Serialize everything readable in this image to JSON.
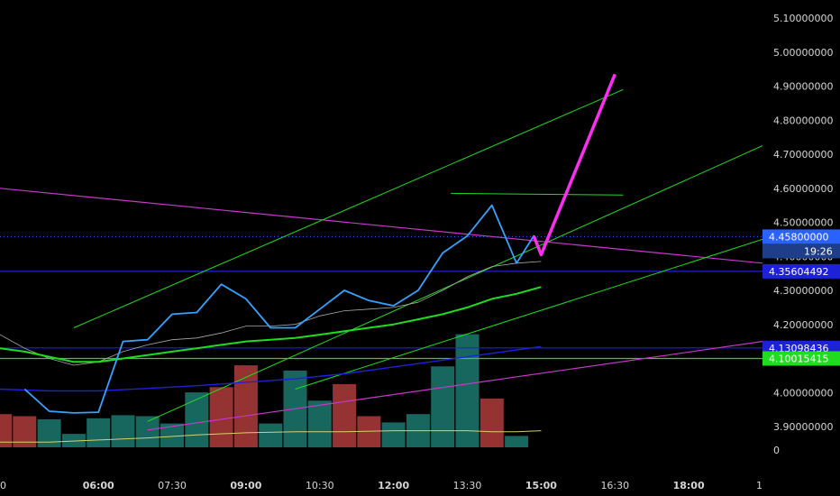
{
  "chart_data": {
    "type": "line",
    "title": "",
    "xlabel": "",
    "ylabel": "",
    "ylim": [
      3.83,
      5.13
    ],
    "grid": false,
    "legend": "none",
    "x_ticks": [
      {
        "label": "0",
        "minute": 240,
        "bold": false
      },
      {
        "label": "06:00",
        "minute": 360,
        "bold": true
      },
      {
        "label": "07:30",
        "minute": 450,
        "bold": false
      },
      {
        "label": "09:00",
        "minute": 540,
        "bold": true
      },
      {
        "label": "10:30",
        "minute": 630,
        "bold": false
      },
      {
        "label": "12:00",
        "minute": 720,
        "bold": true
      },
      {
        "label": "13:30",
        "minute": 810,
        "bold": false
      },
      {
        "label": "15:00",
        "minute": 900,
        "bold": true
      },
      {
        "label": "16:30",
        "minute": 990,
        "bold": false
      },
      {
        "label": "18:00",
        "minute": 1080,
        "bold": true
      },
      {
        "label": "1",
        "minute": 1170,
        "bold": false
      }
    ],
    "y_ticks": [
      "5.10000000",
      "5.00000000",
      "4.90000000",
      "4.80000000",
      "4.70000000",
      "4.60000000",
      "4.50000000",
      "4.40000000",
      "4.30000000",
      "4.20000000",
      "4.10000000",
      "4.00000000",
      "3.90000000"
    ],
    "y_tick_values": [
      5.1,
      5.0,
      4.9,
      4.8,
      4.7,
      4.6,
      4.5,
      4.4,
      4.3,
      4.2,
      4.1,
      4.0,
      3.9
    ],
    "price_tags": [
      {
        "label": "4.45800000",
        "value": 4.458,
        "color": "#2962ff"
      },
      {
        "label": "4.35604492",
        "value": 4.356,
        "color": "#1e22d6"
      },
      {
        "label": "4.13098436",
        "value": 4.131,
        "color": "#1e22d6"
      },
      {
        "label": "4.10015415",
        "value": 4.1,
        "color": "#1fdc1f"
      }
    ],
    "countdown": "19:26",
    "volume_zero_label": "0",
    "price_series": {
      "name": "",
      "color": "#33a3ff",
      "x": [
        270,
        300,
        330,
        360,
        390,
        420,
        450,
        480,
        510,
        540,
        570,
        600,
        630,
        660,
        690,
        720,
        750,
        780,
        810,
        840,
        870,
        891,
        900
      ],
      "y": [
        4.01,
        3.945,
        3.94,
        3.942,
        4.15,
        4.155,
        4.23,
        4.235,
        4.318,
        4.275,
        4.19,
        4.19,
        4.245,
        4.3,
        4.27,
        4.255,
        4.3,
        4.41,
        4.46,
        4.55,
        4.38,
        4.46,
        4.405
      ]
    },
    "thin_ma": {
      "color": "#aaaaaa",
      "x": [
        240,
        270,
        300,
        330,
        360,
        390,
        420,
        450,
        480,
        510,
        540,
        570,
        600,
        630,
        660,
        690,
        720,
        750,
        780,
        810,
        840,
        870,
        900
      ],
      "y": [
        4.17,
        4.13,
        4.1,
        4.08,
        4.09,
        4.12,
        4.14,
        4.155,
        4.16,
        4.175,
        4.195,
        4.195,
        4.2,
        4.225,
        4.24,
        4.245,
        4.25,
        4.265,
        4.3,
        4.34,
        4.37,
        4.38,
        4.385
      ]
    },
    "green_ma": {
      "color": "#1fdc1f",
      "x": [
        240,
        270,
        300,
        330,
        360,
        390,
        420,
        450,
        480,
        510,
        540,
        570,
        600,
        630,
        660,
        690,
        720,
        750,
        780,
        810,
        840,
        870,
        900
      ],
      "y": [
        4.13,
        4.12,
        4.105,
        4.09,
        4.09,
        4.1,
        4.11,
        4.12,
        4.13,
        4.14,
        4.15,
        4.155,
        4.16,
        4.17,
        4.18,
        4.19,
        4.2,
        4.215,
        4.23,
        4.25,
        4.275,
        4.29,
        4.31
      ]
    },
    "blue_ma": {
      "color": "#1e22d6",
      "x": [
        240,
        300,
        360,
        420,
        480,
        540,
        600,
        660,
        720,
        780,
        840,
        900
      ],
      "y": [
        4.01,
        4.005,
        4.005,
        4.012,
        4.02,
        4.03,
        4.04,
        4.055,
        4.075,
        4.095,
        4.115,
        4.135
      ]
    },
    "magenta_down": {
      "color": "#c837c8",
      "x": [
        240,
        1170
      ],
      "y": [
        4.6,
        4.38
      ]
    },
    "magenta_up": {
      "color": "#c837c8",
      "x": [
        420,
        1170
      ],
      "y": [
        3.89,
        4.15
      ]
    },
    "green_lines": [
      {
        "x": [
          330,
          1000
        ],
        "y": [
          4.19,
          4.89
        ]
      },
      {
        "x": [
          420,
          1170
        ],
        "y": [
          3.915,
          4.725
        ]
      },
      {
        "x": [
          600,
          1170
        ],
        "y": [
          4.01,
          4.45
        ]
      },
      {
        "x": [
          790,
          1000
        ],
        "y": [
          4.585,
          4.58
        ]
      }
    ],
    "projection": {
      "color": "#ff2cf2",
      "x": [
        891,
        900,
        990
      ],
      "y": [
        4.46,
        4.405,
        4.935
      ]
    },
    "volume_bars": [
      {
        "x": 240,
        "v": 0.32,
        "dir": "down"
      },
      {
        "x": 270,
        "v": 0.3,
        "dir": "down"
      },
      {
        "x": 300,
        "v": 0.27,
        "dir": "up"
      },
      {
        "x": 330,
        "v": 0.13,
        "dir": "up"
      },
      {
        "x": 360,
        "v": 0.28,
        "dir": "up"
      },
      {
        "x": 390,
        "v": 0.31,
        "dir": "up"
      },
      {
        "x": 420,
        "v": 0.3,
        "dir": "up"
      },
      {
        "x": 450,
        "v": 0.23,
        "dir": "up"
      },
      {
        "x": 480,
        "v": 0.53,
        "dir": "up"
      },
      {
        "x": 510,
        "v": 0.58,
        "dir": "down"
      },
      {
        "x": 540,
        "v": 0.79,
        "dir": "down"
      },
      {
        "x": 570,
        "v": 0.23,
        "dir": "up"
      },
      {
        "x": 600,
        "v": 0.74,
        "dir": "up"
      },
      {
        "x": 630,
        "v": 0.45,
        "dir": "up"
      },
      {
        "x": 660,
        "v": 0.61,
        "dir": "down"
      },
      {
        "x": 690,
        "v": 0.3,
        "dir": "down"
      },
      {
        "x": 720,
        "v": 0.24,
        "dir": "up"
      },
      {
        "x": 750,
        "v": 0.32,
        "dir": "up"
      },
      {
        "x": 780,
        "v": 0.78,
        "dir": "up"
      },
      {
        "x": 810,
        "v": 1.09,
        "dir": "up"
      },
      {
        "x": 840,
        "v": 0.47,
        "dir": "down"
      },
      {
        "x": 870,
        "v": 0.11,
        "dir": "up"
      }
    ],
    "volume_ma": {
      "color": "#d8cf68",
      "x": [
        240,
        300,
        360,
        420,
        480,
        540,
        600,
        660,
        720,
        780,
        810,
        840,
        870,
        900
      ],
      "y": [
        0.05,
        0.05,
        0.07,
        0.09,
        0.12,
        0.14,
        0.15,
        0.15,
        0.16,
        0.16,
        0.16,
        0.15,
        0.15,
        0.16
      ]
    },
    "colors": {
      "up": "#26a69a",
      "down": "#ef5350"
    }
  }
}
